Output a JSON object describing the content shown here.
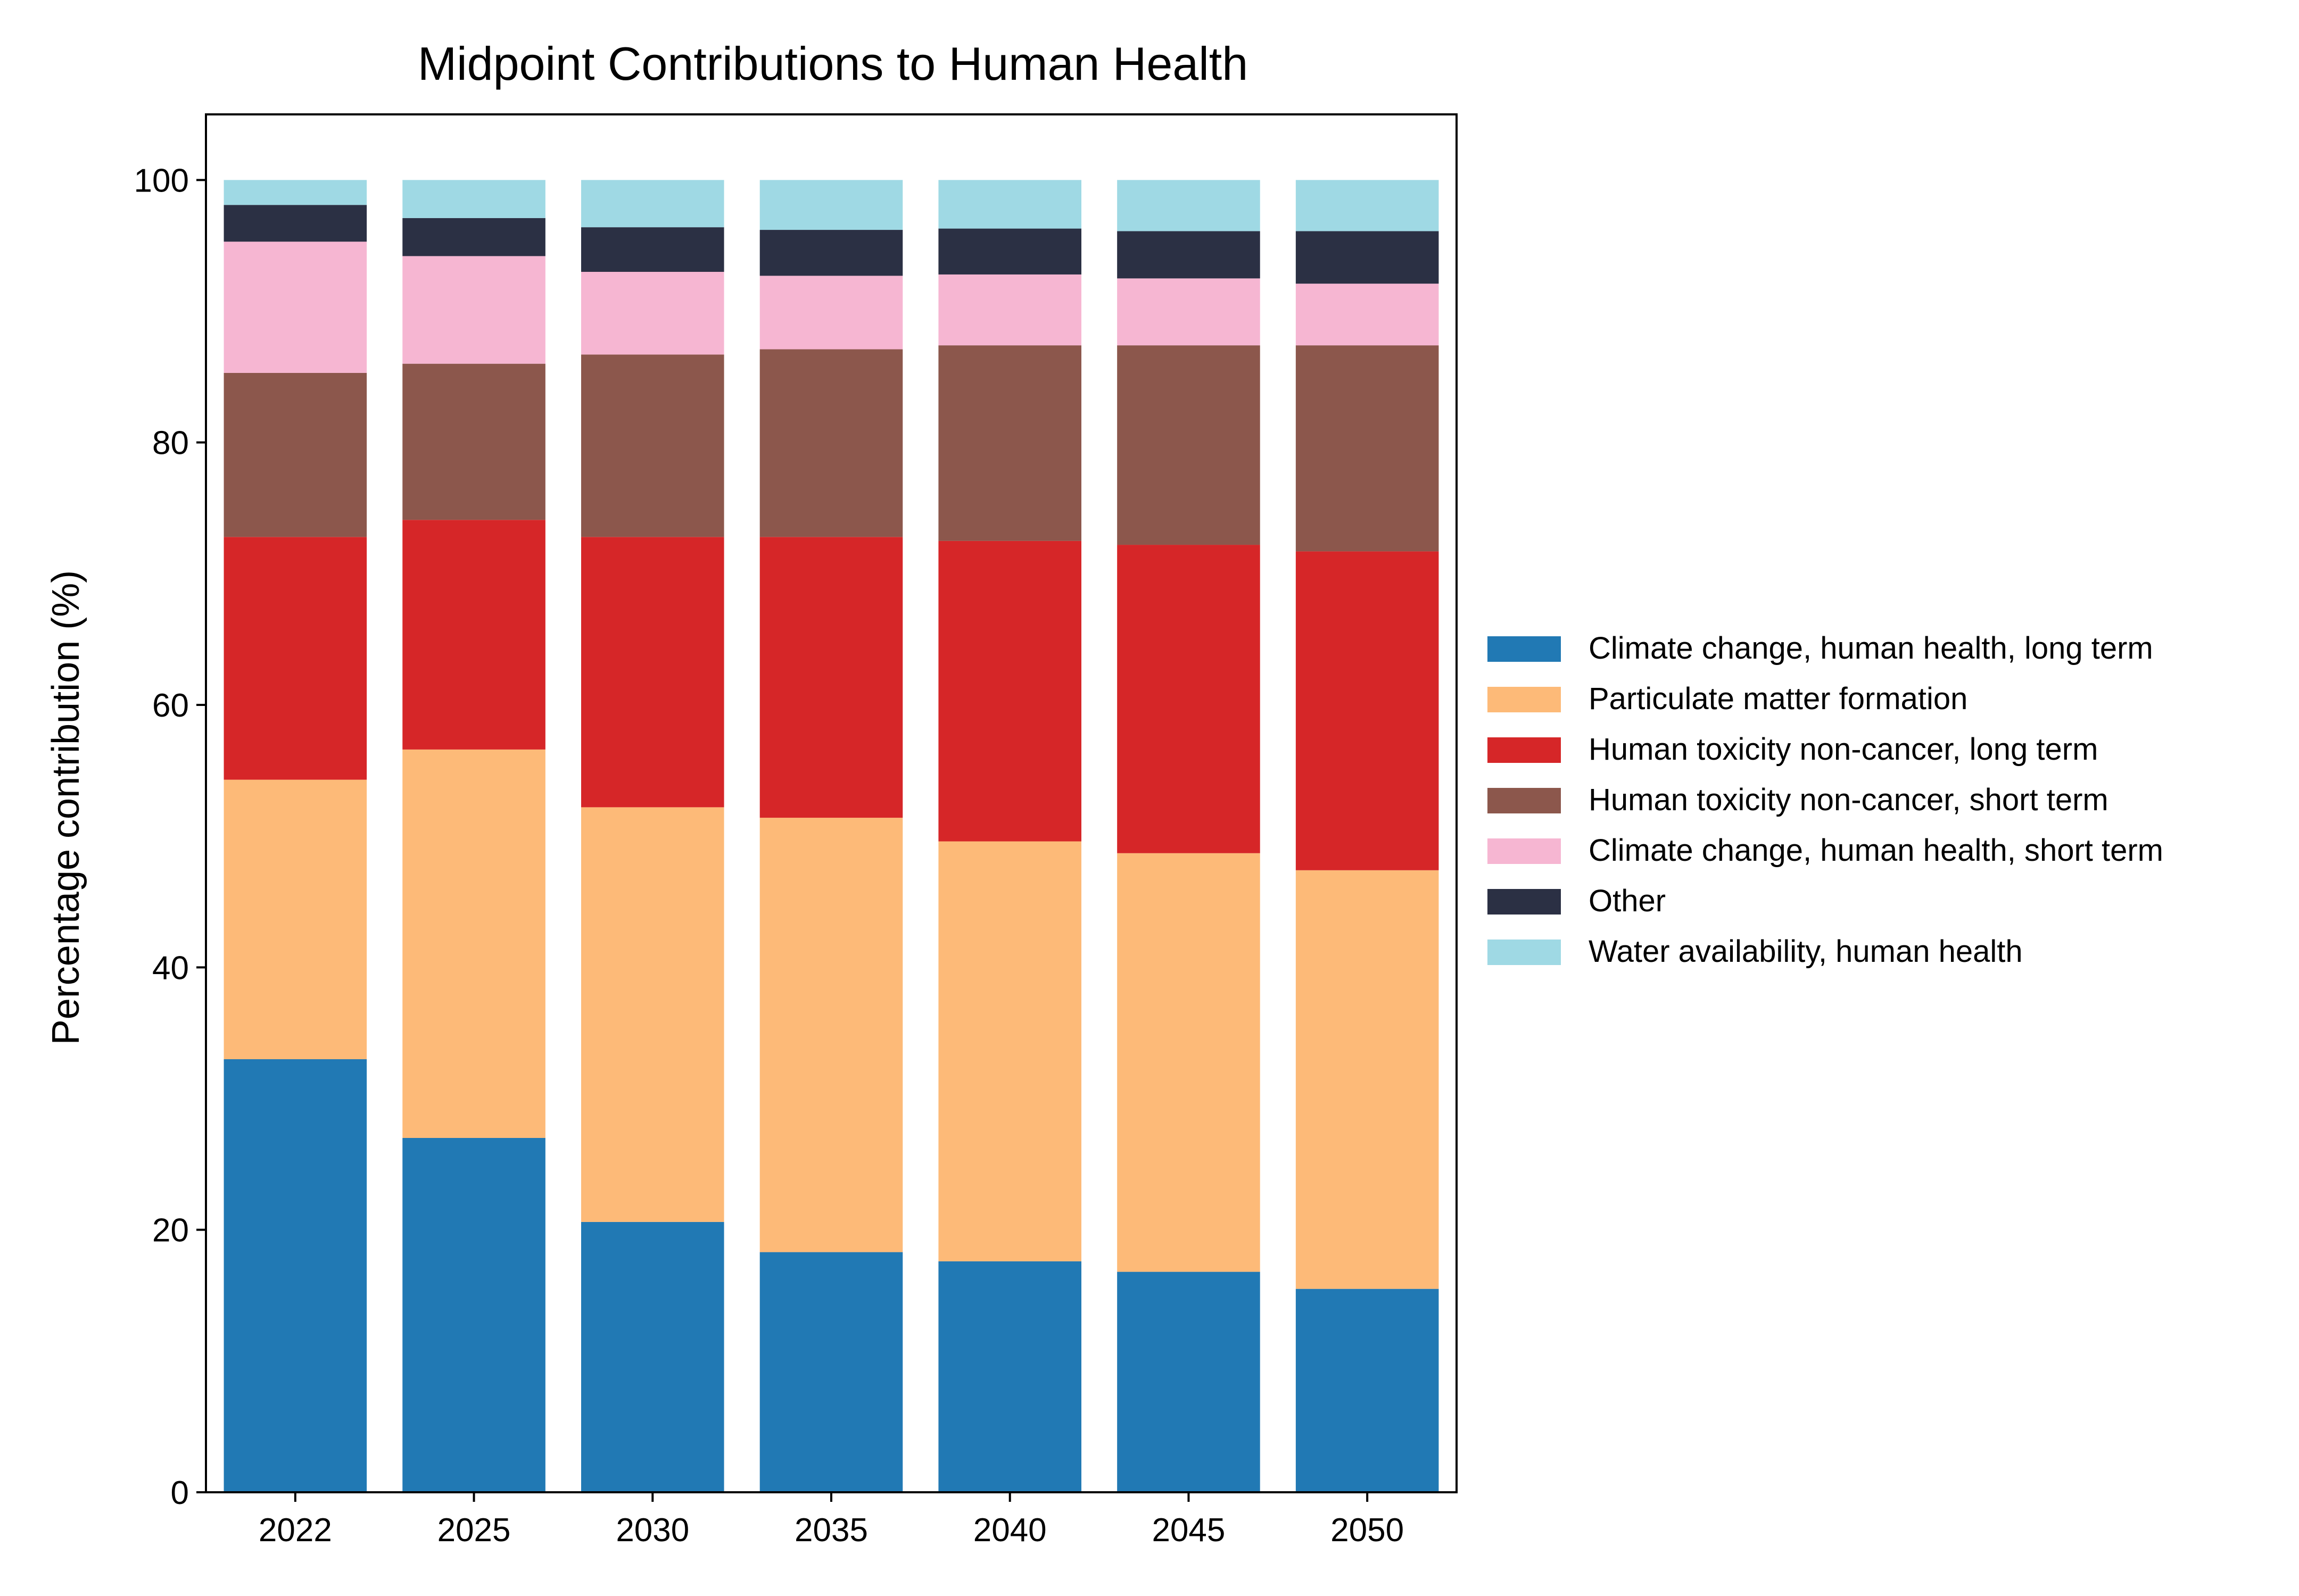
{
  "chart_data": {
    "type": "bar",
    "stacked": true,
    "title": "Midpoint Contributions to Human Health",
    "xlabel": "",
    "ylabel": "Percentage contribution (%)",
    "ylim": [
      0,
      105
    ],
    "yticks": [
      0,
      20,
      40,
      60,
      80,
      100
    ],
    "grid": false,
    "legend_position": "right",
    "categories": [
      "2022",
      "2025",
      "2030",
      "2035",
      "2040",
      "2045",
      "2050"
    ],
    "series": [
      {
        "name": "Climate change, human health, long term",
        "color": "#2179b4",
        "values": [
          33.0,
          27.0,
          20.6,
          18.3,
          17.6,
          16.8,
          15.5
        ]
      },
      {
        "name": "Particulate matter formation",
        "color": "#fdba78",
        "values": [
          21.3,
          29.6,
          31.6,
          33.1,
          32.0,
          31.9,
          31.9
        ]
      },
      {
        "name": "Human toxicity non-cancer, long term",
        "color": "#d62628",
        "values": [
          18.5,
          17.5,
          20.6,
          21.4,
          22.9,
          23.5,
          24.3
        ]
      },
      {
        "name": "Human toxicity non-cancer, short term",
        "color": "#8c574c",
        "values": [
          12.5,
          11.9,
          13.9,
          14.3,
          14.9,
          15.2,
          15.7
        ]
      },
      {
        "name": "Climate change, human health, short term",
        "color": "#f6b6d2",
        "values": [
          10.0,
          8.2,
          6.3,
          5.6,
          5.4,
          5.1,
          4.7
        ]
      },
      {
        "name": "Other",
        "color": "#2b3044",
        "values": [
          2.8,
          2.9,
          3.4,
          3.5,
          3.5,
          3.6,
          4.0
        ]
      },
      {
        "name": "Water availability, human health",
        "color": "#9fd9e4",
        "values": [
          1.9,
          2.9,
          3.6,
          3.8,
          3.7,
          3.9,
          3.9
        ]
      }
    ]
  }
}
